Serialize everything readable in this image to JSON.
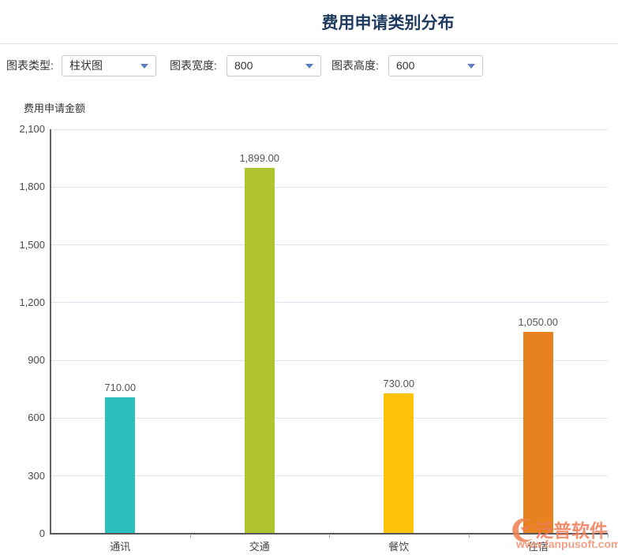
{
  "header": {
    "title": "费用申请类别分布"
  },
  "toolbar": {
    "chart_type_label": "图表类型:",
    "chart_type_value": "柱状图",
    "chart_width_label": "图表宽度:",
    "chart_width_value": "800",
    "chart_height_label": "图表高度:",
    "chart_height_value": "600"
  },
  "chart_data": {
    "type": "bar",
    "title": "费用申请类别分布",
    "ylabel": "费用申请金额",
    "xlabel": "",
    "categories": [
      "通讯",
      "交通",
      "餐饮",
      "住宿"
    ],
    "values": [
      710,
      1899,
      730,
      1050
    ],
    "value_labels": [
      "710.00",
      "1,899.00",
      "730.00",
      "1,050.00"
    ],
    "bar_colors": [
      "#2abebc",
      "#afc42f",
      "#fcc30a",
      "#e8811f"
    ],
    "ylim": [
      0,
      2100
    ],
    "ytick_step": 300,
    "ytick_labels": [
      "0",
      "300",
      "600",
      "900",
      "1,200",
      "1,500",
      "1,800",
      "2,100"
    ],
    "grid": true,
    "legend_position": "none"
  },
  "watermark": {
    "brand": "泛普软件",
    "url": "www.fanpusoft.com",
    "accent_color": "#f07c58"
  }
}
